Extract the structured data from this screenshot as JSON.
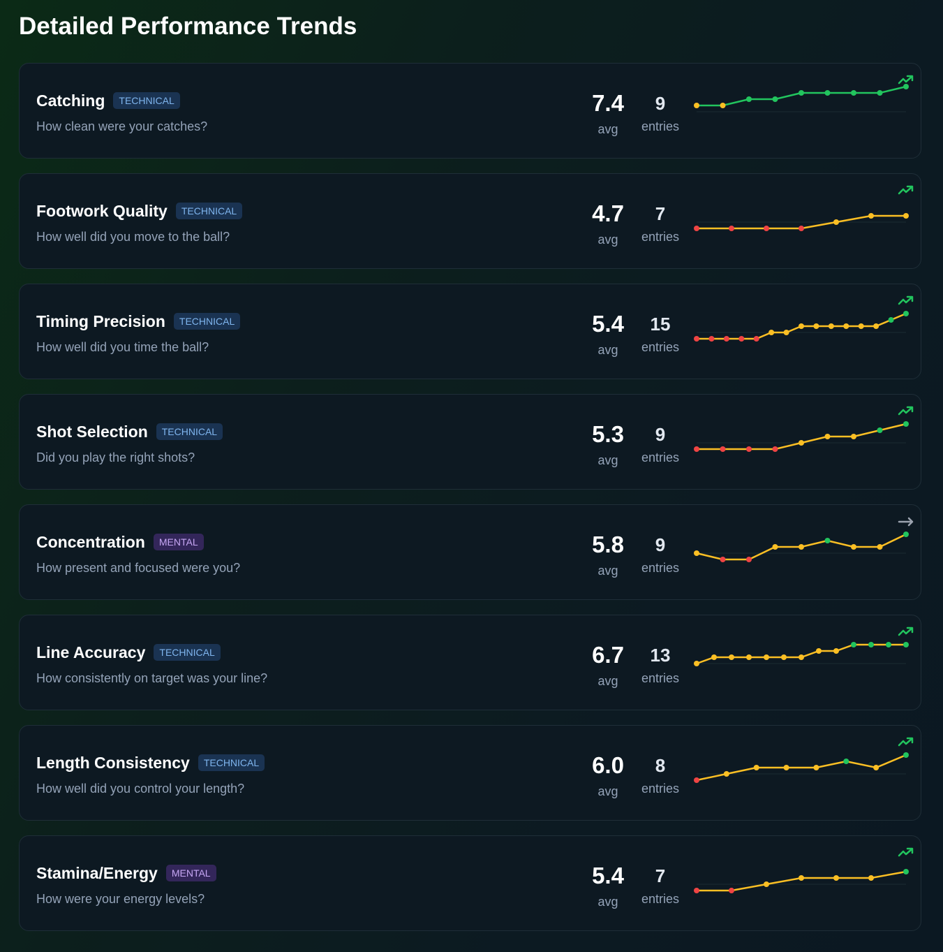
{
  "header": {
    "title": "Detailed Performance Trends"
  },
  "avg_label": "avg",
  "entries_label": "entries",
  "ylim": [
    0,
    10
  ],
  "trends": [
    {
      "name": "Catching",
      "category": "TECHNICAL",
      "question": "How clean were your catches?",
      "avg": "7.4",
      "entries": 9,
      "trend": "up",
      "line_color": "#22c55e",
      "values": [
        6,
        6,
        7,
        7,
        8,
        8,
        8,
        8,
        9
      ],
      "point_colors": [
        "#fbbf24",
        "#fbbf24",
        "#22c55e",
        "#22c55e",
        "#22c55e",
        "#22c55e",
        "#22c55e",
        "#22c55e",
        "#22c55e"
      ]
    },
    {
      "name": "Footwork Quality",
      "category": "TECHNICAL",
      "question": "How well did you move to the ball?",
      "avg": "4.7",
      "entries": 7,
      "trend": "up",
      "line_color": "#fbbf24",
      "values": [
        4,
        4,
        4,
        4,
        5,
        6,
        6
      ],
      "point_colors": [
        "#ef4444",
        "#ef4444",
        "#ef4444",
        "#ef4444",
        "#fbbf24",
        "#fbbf24",
        "#fbbf24"
      ]
    },
    {
      "name": "Timing Precision",
      "category": "TECHNICAL",
      "question": "How well did you time the ball?",
      "avg": "5.4",
      "entries": 15,
      "trend": "up",
      "line_color": "#fbbf24",
      "values": [
        4,
        4,
        4,
        4,
        4,
        5,
        5,
        6,
        6,
        6,
        6,
        6,
        6,
        7,
        8
      ],
      "point_colors": [
        "#ef4444",
        "#ef4444",
        "#ef4444",
        "#ef4444",
        "#ef4444",
        "#fbbf24",
        "#fbbf24",
        "#fbbf24",
        "#fbbf24",
        "#fbbf24",
        "#fbbf24",
        "#fbbf24",
        "#fbbf24",
        "#22c55e",
        "#22c55e"
      ]
    },
    {
      "name": "Shot Selection",
      "category": "TECHNICAL",
      "question": "Did you play the right shots?",
      "avg": "5.3",
      "entries": 9,
      "trend": "up",
      "line_color": "#fbbf24",
      "values": [
        4,
        4,
        4,
        4,
        5,
        6,
        6,
        7,
        8
      ],
      "point_colors": [
        "#ef4444",
        "#ef4444",
        "#ef4444",
        "#ef4444",
        "#fbbf24",
        "#fbbf24",
        "#fbbf24",
        "#22c55e",
        "#22c55e"
      ]
    },
    {
      "name": "Concentration",
      "category": "MENTAL",
      "question": "How present and focused were you?",
      "avg": "5.8",
      "entries": 9,
      "trend": "flat",
      "line_color": "#fbbf24",
      "values": [
        5,
        4,
        4,
        6,
        6,
        7,
        6,
        6,
        8
      ],
      "point_colors": [
        "#fbbf24",
        "#ef4444",
        "#ef4444",
        "#fbbf24",
        "#fbbf24",
        "#22c55e",
        "#fbbf24",
        "#fbbf24",
        "#22c55e"
      ]
    },
    {
      "name": "Line Accuracy",
      "category": "TECHNICAL",
      "question": "How consistently on target was your line?",
      "avg": "6.7",
      "entries": 13,
      "trend": "up",
      "line_color": "#fbbf24",
      "values": [
        5,
        6,
        6,
        6,
        6,
        6,
        6,
        7,
        7,
        8,
        8,
        8,
        8
      ],
      "point_colors": [
        "#fbbf24",
        "#fbbf24",
        "#fbbf24",
        "#fbbf24",
        "#fbbf24",
        "#fbbf24",
        "#fbbf24",
        "#fbbf24",
        "#fbbf24",
        "#22c55e",
        "#22c55e",
        "#22c55e",
        "#22c55e"
      ]
    },
    {
      "name": "Length Consistency",
      "category": "TECHNICAL",
      "question": "How well did you control your length?",
      "avg": "6.0",
      "entries": 8,
      "trend": "up",
      "line_color": "#fbbf24",
      "values": [
        4,
        5,
        6,
        6,
        6,
        7,
        6,
        8
      ],
      "point_colors": [
        "#ef4444",
        "#fbbf24",
        "#fbbf24",
        "#fbbf24",
        "#fbbf24",
        "#22c55e",
        "#fbbf24",
        "#22c55e"
      ]
    },
    {
      "name": "Stamina/Energy",
      "category": "MENTAL",
      "question": "How were your energy levels?",
      "avg": "5.4",
      "entries": 7,
      "trend": "up",
      "line_color": "#fbbf24",
      "values": [
        4,
        4,
        5,
        6,
        6,
        6,
        7
      ],
      "point_colors": [
        "#ef4444",
        "#ef4444",
        "#fbbf24",
        "#fbbf24",
        "#fbbf24",
        "#fbbf24",
        "#22c55e"
      ]
    }
  ]
}
